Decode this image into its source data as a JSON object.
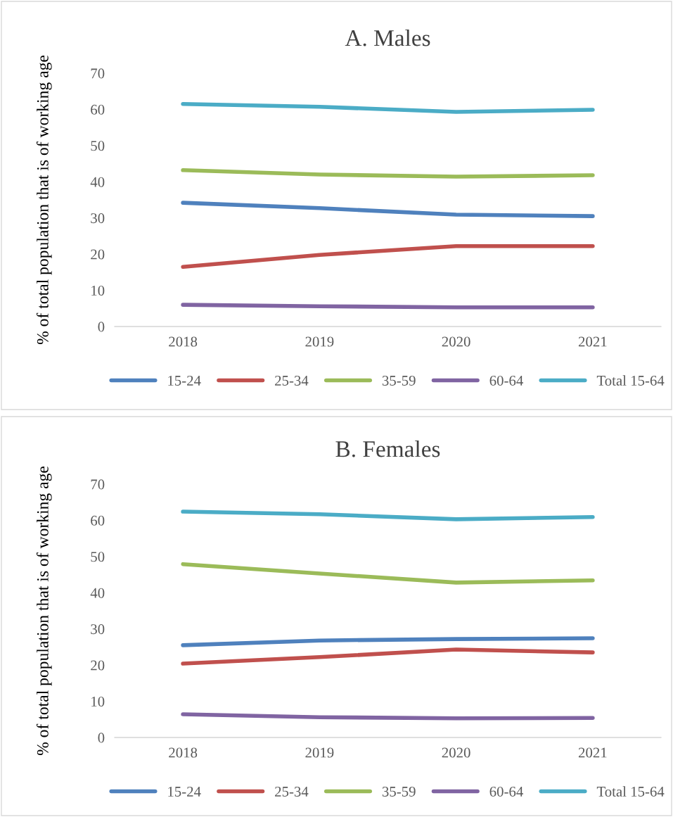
{
  "chart_data": [
    {
      "type": "line",
      "title": "A. Males",
      "ylabel": "% of total population that is of working age",
      "categories": [
        "2018",
        "2019",
        "2020",
        "2021"
      ],
      "ylim": [
        0,
        70
      ],
      "yticks": [
        0,
        10,
        20,
        30,
        40,
        50,
        60,
        70
      ],
      "grid": false,
      "legend": "bottom",
      "marker": "none",
      "line_style": "solid",
      "series": [
        {
          "name": "15-24",
          "color": "#4f81bd",
          "values": [
            34.2,
            32.7,
            30.9,
            30.5
          ]
        },
        {
          "name": "25-34",
          "color": "#c0504d",
          "values": [
            16.5,
            19.8,
            22.2,
            22.2
          ]
        },
        {
          "name": "35-59",
          "color": "#9bbb59",
          "values": [
            43.2,
            42.0,
            41.4,
            41.8
          ]
        },
        {
          "name": "60-64",
          "color": "#8064a2",
          "values": [
            6.0,
            5.6,
            5.3,
            5.3
          ]
        },
        {
          "name": "Total 15-64",
          "color": "#4bacc6",
          "values": [
            61.5,
            60.7,
            59.3,
            59.9
          ]
        }
      ]
    },
    {
      "type": "line",
      "title": "B. Females",
      "ylabel": "% of total population that is of working age",
      "categories": [
        "2018",
        "2019",
        "2020",
        "2021"
      ],
      "ylim": [
        0,
        70
      ],
      "yticks": [
        0,
        10,
        20,
        30,
        40,
        50,
        60,
        70
      ],
      "grid": false,
      "legend": "bottom",
      "marker": "none",
      "line_style": "solid",
      "series": [
        {
          "name": "15-24",
          "color": "#4f81bd",
          "values": [
            25.5,
            26.8,
            27.2,
            27.4
          ]
        },
        {
          "name": "25-34",
          "color": "#c0504d",
          "values": [
            20.4,
            22.2,
            24.3,
            23.5
          ]
        },
        {
          "name": "35-59",
          "color": "#9bbb59",
          "values": [
            47.9,
            45.3,
            42.8,
            43.4
          ]
        },
        {
          "name": "60-64",
          "color": "#8064a2",
          "values": [
            6.4,
            5.6,
            5.3,
            5.4
          ]
        },
        {
          "name": "Total 15-64",
          "color": "#4bacc6",
          "values": [
            62.4,
            61.7,
            60.3,
            60.9
          ]
        }
      ]
    }
  ]
}
